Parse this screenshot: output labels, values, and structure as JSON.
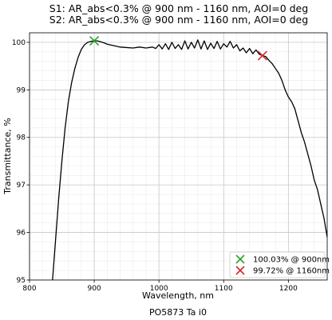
{
  "chart_data": {
    "type": "line",
    "title_lines": [
      "S1: AR_abs<0.3% @ 900 nm - 1160 nm, AOI=0 deg",
      "S2: AR_abs<0.3% @ 900 nm - 1160 nm, AOI=0 deg"
    ],
    "xlabel": "Wavelength, nm",
    "ylabel": "Transmittance, %",
    "footer": "PO5873 Ta i0",
    "xlim": [
      800,
      1260
    ],
    "ylim": [
      95,
      100.2
    ],
    "xticks": [
      "800",
      "900",
      "1000",
      "1100",
      "1200"
    ],
    "xtick_values": [
      800,
      900,
      1000,
      1100,
      1200
    ],
    "yticks": [
      "95",
      "96",
      "97",
      "98",
      "99",
      "100"
    ],
    "ytick_values": [
      95,
      96,
      97,
      98,
      99,
      100
    ],
    "grid": true,
    "minor_grid": true,
    "legend_position": "lower-right",
    "line_color": "#000000",
    "series": [
      {
        "x": [
          835,
          840,
          845,
          850,
          855,
          860,
          865,
          870,
          875,
          880,
          885,
          890,
          895,
          900,
          905,
          910,
          915,
          920,
          930,
          940,
          950,
          960,
          970,
          980,
          990,
          995,
          1000,
          1005,
          1010,
          1015,
          1020,
          1025,
          1030,
          1035,
          1040,
          1045,
          1050,
          1055,
          1060,
          1065,
          1070,
          1075,
          1080,
          1085,
          1090,
          1095,
          1100,
          1105,
          1110,
          1115,
          1120,
          1125,
          1130,
          1135,
          1140,
          1145,
          1150,
          1155,
          1160,
          1165,
          1170,
          1175,
          1180,
          1185,
          1190,
          1195,
          1200,
          1205,
          1210,
          1215,
          1220,
          1225,
          1230,
          1235,
          1240,
          1245,
          1250,
          1255,
          1260
        ],
        "y": [
          94.9,
          95.8,
          96.7,
          97.5,
          98.2,
          98.75,
          99.15,
          99.45,
          99.68,
          99.85,
          99.95,
          100.0,
          100.02,
          100.03,
          100.03,
          100.01,
          99.99,
          99.96,
          99.93,
          99.9,
          99.89,
          99.88,
          99.9,
          99.88,
          99.9,
          99.87,
          99.95,
          99.86,
          99.97,
          99.85,
          100.0,
          99.87,
          99.95,
          99.85,
          100.03,
          99.86,
          100.0,
          99.88,
          100.05,
          99.86,
          100.03,
          99.85,
          99.98,
          99.87,
          100.02,
          99.86,
          99.97,
          99.9,
          100.02,
          99.88,
          99.95,
          99.82,
          99.88,
          99.78,
          99.87,
          99.76,
          99.84,
          99.75,
          99.72,
          99.7,
          99.62,
          99.55,
          99.45,
          99.35,
          99.2,
          99.0,
          98.85,
          98.75,
          98.6,
          98.35,
          98.1,
          97.9,
          97.65,
          97.4,
          97.1,
          96.9,
          96.6,
          96.3,
          95.9
        ]
      }
    ],
    "markers": [
      {
        "label": "100.03% @ 900nm",
        "x": 900,
        "y": 100.03,
        "color": "#2ca02c",
        "symbol": "x"
      },
      {
        "label": "99.72% @ 1160nm",
        "x": 1160,
        "y": 99.72,
        "color": "#d62728",
        "symbol": "x"
      }
    ]
  }
}
